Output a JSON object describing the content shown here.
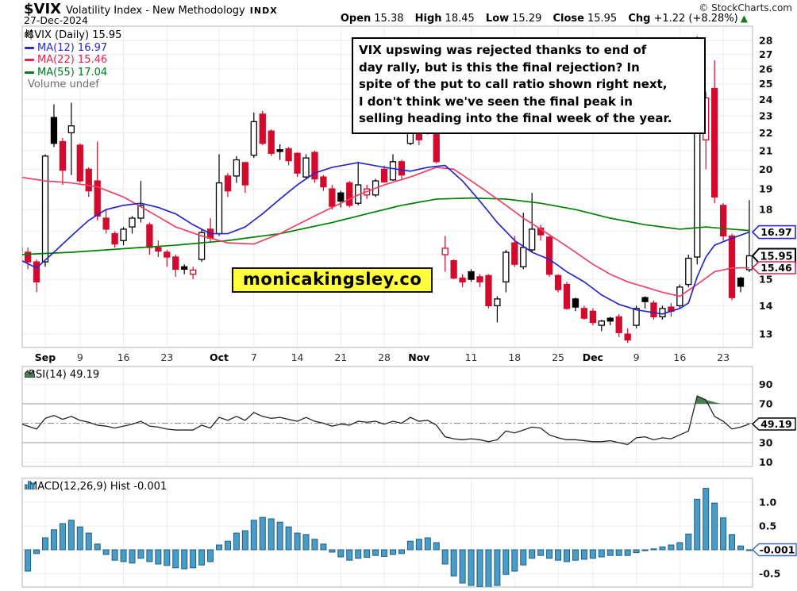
{
  "header": {
    "symbol": "$VIX",
    "name": "Volatility Index - New Methodology",
    "exchange": "INDX",
    "date": "27-Dec-2024",
    "credit": "© StockCharts.com",
    "quote": {
      "open_label": "Open",
      "open": "15.38",
      "high_label": "High",
      "high": "18.45",
      "low_label": "Low",
      "low": "15.29",
      "close_label": "Close",
      "close": "15.95",
      "chg_label": "Chg",
      "chg": "+1.22 (+8.28%)",
      "direction_arrow": "▲"
    }
  },
  "legend": {
    "series_label": "$VIX (Daily) 15.95",
    "ma12_label": "MA(12) 16.97",
    "ma22_label": "MA(22) 15.46",
    "ma55_label": "MA(55) 17.04",
    "volume_label": "Volume undef"
  },
  "annotation": {
    "lines": [
      "VIX upswing was rejected thanks to end of",
      "day rally, but is this the final rejection? In",
      "spite of the put to call ratio shown right next,",
      "I don't think we've seen the final peak in",
      "selling heading into the final week of the year."
    ]
  },
  "watermark": {
    "text": "monicakingsley.co"
  },
  "rsi_panel": {
    "label": "RSI(14) 49.19",
    "callout": "49.19"
  },
  "macd_panel": {
    "label": "MACD(12,26,9) Hist -0.001",
    "callout": "-0.001"
  },
  "price_callouts": {
    "ma12": "16.97",
    "last": "15.95",
    "ma22": "15.46"
  },
  "colors": {
    "candle_up": "#000000",
    "candle_down": "#d20a2e",
    "ma12": "#2828c8",
    "ma22": "#ef4066",
    "ma55": "#008000",
    "macd_bar_fill": "#4a9cc7",
    "macd_bar_stroke": "#1d5f86",
    "rsi_line": "#222222",
    "rsi_overbought_fill": "#4a7d57",
    "grid": "#ececec",
    "panel_border": "#b4b4b4",
    "watermark_bg": "#ffff3d"
  },
  "chart_data": {
    "type": "candlestick+indicators",
    "title": "$VIX Volatility Index - New Methodology (Daily)",
    "scale": "log",
    "price_ylim": [
      12.6,
      29.1
    ],
    "price_ticks": [
      13,
      14,
      15,
      16,
      17,
      18,
      19,
      20,
      21,
      22,
      23,
      24,
      25,
      26,
      27,
      28
    ],
    "x_ticks": [
      [
        3,
        "Sep",
        1
      ],
      [
        7,
        "9",
        0
      ],
      [
        12,
        "16",
        0
      ],
      [
        17,
        "23",
        0
      ],
      [
        23,
        "Oct",
        1
      ],
      [
        27,
        "7",
        0
      ],
      [
        32,
        "14",
        0
      ],
      [
        37,
        "21",
        0
      ],
      [
        42,
        "28",
        0
      ],
      [
        46,
        "Nov",
        1
      ],
      [
        52,
        "11",
        0
      ],
      [
        57,
        "18",
        0
      ],
      [
        62,
        "25",
        0
      ],
      [
        66,
        "Dec",
        1
      ],
      [
        71,
        "9",
        0
      ],
      [
        76,
        "16",
        0
      ],
      [
        81,
        "23",
        0
      ]
    ],
    "ohlc": [
      [
        "Aug 28",
        16.3,
        17.2,
        15.9,
        16.1
      ],
      [
        "Aug 29",
        16.1,
        16.3,
        15.4,
        15.7
      ],
      [
        "Aug 30",
        15.7,
        15.8,
        14.5,
        14.9
      ],
      [
        "Sep 3",
        15.7,
        20.8,
        15.5,
        20.7
      ],
      [
        "Sep 4",
        22.9,
        23.7,
        21.2,
        21.4
      ],
      [
        "Sep 5",
        21.5,
        21.7,
        19.2,
        19.95
      ],
      [
        "Sep 6",
        22.0,
        23.8,
        19.7,
        22.4
      ],
      [
        "Sep 9",
        21.3,
        21.4,
        19.3,
        19.4
      ],
      [
        "Sep 10",
        20.0,
        20.1,
        18.6,
        18.9
      ],
      [
        "Sep 11",
        19.4,
        21.5,
        17.5,
        17.7
      ],
      [
        "Sep 12",
        17.6,
        18.0,
        16.9,
        17.1
      ],
      [
        "Sep 13",
        16.9,
        17.0,
        16.3,
        16.45
      ],
      [
        "Sep 16",
        16.6,
        17.2,
        16.4,
        17.1
      ],
      [
        "Sep 17",
        17.2,
        17.7,
        16.9,
        17.6
      ],
      [
        "Sep 18",
        17.6,
        19.4,
        17.4,
        18.2
      ],
      [
        "Sep 19",
        17.3,
        17.4,
        16.0,
        16.3
      ],
      [
        "Sep 20",
        16.3,
        16.6,
        15.9,
        16.15
      ],
      [
        "Sep 23",
        16.1,
        16.2,
        15.5,
        15.9
      ],
      [
        "Sep 24",
        15.9,
        16.0,
        15.1,
        15.4
      ],
      [
        "Sep 25",
        15.5,
        15.6,
        15.2,
        15.4
      ],
      [
        "Sep 26",
        15.2,
        15.5,
        15.0,
        15.37
      ],
      [
        "Sep 27",
        15.8,
        17.1,
        15.7,
        16.95
      ],
      [
        "Sep 30",
        17.1,
        17.6,
        16.5,
        16.7
      ],
      [
        "Oct 1",
        16.9,
        20.8,
        16.8,
        19.3
      ],
      [
        "Oct 2",
        19.65,
        19.8,
        18.6,
        18.9
      ],
      [
        "Oct 3",
        19.65,
        20.7,
        19.3,
        20.5
      ],
      [
        "Oct 4",
        20.35,
        20.4,
        18.8,
        19.2
      ],
      [
        "Oct 7",
        20.75,
        23.2,
        20.6,
        22.65
      ],
      [
        "Oct 8",
        23.1,
        23.3,
        21.3,
        21.4
      ],
      [
        "Oct 9",
        22.1,
        22.2,
        20.7,
        20.85
      ],
      [
        "Oct 10",
        21.05,
        21.35,
        20.5,
        20.95
      ],
      [
        "Oct 11",
        21.1,
        21.2,
        20.2,
        20.45
      ],
      [
        "Oct 14",
        20.85,
        20.9,
        19.6,
        19.8
      ],
      [
        "Oct 15",
        19.6,
        20.8,
        19.5,
        20.6
      ],
      [
        "Oct 16",
        20.9,
        21.0,
        19.3,
        19.5
      ],
      [
        "Oct 17",
        19.6,
        19.7,
        18.9,
        19.1
      ],
      [
        "Oct 18",
        19.0,
        19.2,
        18.0,
        18.15
      ],
      [
        "Oct 21",
        18.8,
        18.9,
        18.1,
        18.4
      ],
      [
        "Oct 22",
        19.3,
        19.4,
        18.1,
        18.2
      ],
      [
        "Oct 23",
        18.3,
        20.4,
        18.2,
        19.2
      ],
      [
        "Oct 24",
        18.7,
        19.2,
        18.5,
        19.0
      ],
      [
        "Oct 25",
        18.7,
        19.5,
        18.6,
        19.4
      ],
      [
        "Oct 28",
        20.0,
        20.2,
        19.3,
        19.35
      ],
      [
        "Oct 29",
        19.45,
        20.8,
        19.4,
        20.4
      ],
      [
        "Oct 30",
        20.4,
        20.5,
        19.5,
        19.7
      ],
      [
        "Oct 31",
        21.4,
        23.4,
        21.3,
        23.1
      ],
      [
        "Nov 1",
        22.5,
        22.6,
        21.3,
        21.6
      ],
      [
        "Nov 4",
        22.4,
        22.5,
        21.9,
        22.0
      ],
      [
        "Nov 5",
        22.1,
        22.2,
        20.3,
        20.4
      ],
      [
        "Nov 6",
        16.0,
        16.8,
        15.3,
        16.27
      ],
      [
        "Nov 7",
        15.75,
        15.8,
        15.0,
        15.05
      ],
      [
        "Nov 8",
        15.05,
        15.2,
        14.7,
        14.9
      ],
      [
        "Nov 11",
        15.3,
        15.4,
        14.9,
        15.0
      ],
      [
        "Nov 12",
        15.1,
        15.2,
        14.7,
        14.9
      ],
      [
        "Nov 13",
        15.15,
        15.2,
        13.9,
        14.0
      ],
      [
        "Nov 14",
        14.0,
        14.35,
        13.4,
        14.25
      ],
      [
        "Nov 15",
        14.9,
        16.2,
        14.5,
        16.1
      ],
      [
        "Nov 18",
        16.5,
        16.8,
        15.5,
        15.6
      ],
      [
        "Nov 19",
        15.5,
        17.85,
        15.4,
        16.3
      ],
      [
        "Nov 20",
        16.2,
        18.8,
        16.1,
        17.1
      ],
      [
        "Nov 21",
        17.15,
        17.3,
        16.6,
        16.85
      ],
      [
        "Nov 22",
        16.75,
        16.8,
        15.1,
        15.2
      ],
      [
        "Nov 25",
        15.15,
        15.2,
        14.5,
        14.6
      ],
      [
        "Nov 26",
        14.8,
        14.9,
        13.85,
        13.9
      ],
      [
        "Nov 27",
        14.25,
        14.3,
        13.8,
        13.95
      ],
      [
        "Nov 29",
        13.9,
        14.0,
        13.5,
        13.55
      ],
      [
        "Dec 2",
        13.8,
        13.9,
        13.3,
        13.4
      ],
      [
        "Dec 3",
        13.3,
        13.5,
        13.1,
        13.45
      ],
      [
        "Dec 4",
        13.55,
        13.6,
        13.3,
        13.45
      ],
      [
        "Dec 5",
        13.6,
        13.7,
        12.9,
        13.05
      ],
      [
        "Dec 6",
        13.0,
        13.2,
        12.7,
        12.8
      ],
      [
        "Dec 9",
        13.3,
        14.0,
        13.2,
        13.9
      ],
      [
        "Dec 10",
        14.3,
        14.35,
        13.9,
        14.15
      ],
      [
        "Dec 11",
        14.1,
        14.2,
        13.5,
        13.6
      ],
      [
        "Dec 12",
        13.6,
        14.0,
        13.5,
        13.9
      ],
      [
        "Dec 13",
        13.95,
        14.1,
        13.6,
        13.8
      ],
      [
        "Dec 16",
        14.0,
        14.8,
        13.9,
        14.7
      ],
      [
        "Dec 17",
        14.8,
        16.0,
        14.7,
        15.85
      ],
      [
        "Dec 18",
        15.9,
        28.3,
        15.6,
        27.6
      ],
      [
        "Dec 19",
        21.6,
        24.5,
        20.0,
        24.1
      ],
      [
        "Dec 20",
        24.7,
        26.6,
        18.3,
        18.6
      ],
      [
        "Dec 23",
        18.2,
        18.3,
        16.6,
        16.8
      ],
      [
        "Dec 24",
        16.8,
        16.9,
        14.2,
        14.3
      ],
      [
        "Dec 26",
        15.05,
        15.1,
        14.5,
        14.73
      ],
      [
        "Dec 27",
        15.38,
        18.45,
        15.29,
        15.95
      ]
    ],
    "ma12_points": [
      [
        0,
        15.8
      ],
      [
        2,
        15.45
      ],
      [
        4,
        16.1
      ],
      [
        6,
        16.8
      ],
      [
        8,
        17.5
      ],
      [
        10,
        18.0
      ],
      [
        12,
        18.2
      ],
      [
        14,
        18.3
      ],
      [
        16,
        18.1
      ],
      [
        18,
        17.8
      ],
      [
        20,
        17.3
      ],
      [
        22,
        16.9
      ],
      [
        24,
        16.9
      ],
      [
        26,
        17.2
      ],
      [
        28,
        17.8
      ],
      [
        30,
        18.5
      ],
      [
        32,
        19.2
      ],
      [
        34,
        19.8
      ],
      [
        36,
        20.1
      ],
      [
        39,
        20.35
      ],
      [
        42,
        20.1
      ],
      [
        45,
        19.9
      ],
      [
        47,
        20.1
      ],
      [
        49,
        20.2
      ],
      [
        51,
        19.4
      ],
      [
        53,
        18.4
      ],
      [
        55,
        17.4
      ],
      [
        57,
        16.6
      ],
      [
        59,
        16.1
      ],
      [
        61,
        15.8
      ],
      [
        63,
        15.3
      ],
      [
        65,
        14.9
      ],
      [
        67,
        14.4
      ],
      [
        69,
        14.05
      ],
      [
        71,
        13.85
      ],
      [
        74,
        13.7
      ],
      [
        76,
        13.9
      ],
      [
        77,
        14.1
      ],
      [
        78,
        15.1
      ],
      [
        79,
        15.9
      ],
      [
        80,
        16.4
      ],
      [
        82,
        16.7
      ],
      [
        84,
        16.97
      ]
    ],
    "ma22_points": [
      [
        0,
        19.6
      ],
      [
        3,
        19.4
      ],
      [
        6,
        19.3
      ],
      [
        9,
        19.1
      ],
      [
        12,
        18.6
      ],
      [
        15,
        17.9
      ],
      [
        18,
        17.2
      ],
      [
        21,
        16.8
      ],
      [
        24,
        16.5
      ],
      [
        27,
        16.45
      ],
      [
        30,
        16.9
      ],
      [
        33,
        17.5
      ],
      [
        36,
        18.1
      ],
      [
        39,
        18.7
      ],
      [
        42,
        19.2
      ],
      [
        45,
        19.6
      ],
      [
        48,
        20.1
      ],
      [
        50,
        20.0
      ],
      [
        52,
        19.4
      ],
      [
        54,
        18.8
      ],
      [
        56,
        18.2
      ],
      [
        58,
        17.6
      ],
      [
        60,
        17.1
      ],
      [
        62,
        16.6
      ],
      [
        64,
        16.1
      ],
      [
        66,
        15.6
      ],
      [
        68,
        15.2
      ],
      [
        70,
        14.9
      ],
      [
        72,
        14.7
      ],
      [
        74,
        14.5
      ],
      [
        76,
        14.35
      ],
      [
        78,
        14.8
      ],
      [
        80,
        15.3
      ],
      [
        82,
        15.45
      ],
      [
        84,
        15.46
      ]
    ],
    "ma55_points": [
      [
        0,
        16.0
      ],
      [
        6,
        16.1
      ],
      [
        12,
        16.25
      ],
      [
        18,
        16.4
      ],
      [
        24,
        16.6
      ],
      [
        30,
        16.9
      ],
      [
        36,
        17.4
      ],
      [
        40,
        17.8
      ],
      [
        44,
        18.2
      ],
      [
        48,
        18.5
      ],
      [
        52,
        18.55
      ],
      [
        56,
        18.5
      ],
      [
        60,
        18.3
      ],
      [
        64,
        18.0
      ],
      [
        68,
        17.6
      ],
      [
        72,
        17.3
      ],
      [
        76,
        17.1
      ],
      [
        79,
        17.2
      ],
      [
        82,
        17.1
      ],
      [
        84,
        17.04
      ]
    ],
    "rsi14": [
      50,
      47,
      44,
      55,
      58,
      54,
      57,
      53,
      51,
      48,
      47,
      45,
      47,
      49,
      52,
      47,
      46,
      44,
      43,
      43,
      43,
      48,
      45,
      56,
      53,
      57,
      53,
      61,
      57,
      55,
      56,
      54,
      52,
      56,
      52,
      50,
      47,
      49,
      48,
      52,
      51,
      52,
      49,
      52,
      50,
      56,
      52,
      53,
      48,
      36,
      34,
      33,
      34,
      33,
      31,
      33,
      42,
      40,
      43,
      46,
      45,
      38,
      35,
      33,
      33,
      32,
      31,
      31,
      32,
      30,
      28,
      35,
      36,
      33,
      35,
      34,
      38,
      42,
      78,
      74,
      57,
      52,
      44,
      46,
      49.19
    ],
    "rsi_lines": {
      "overbought": 70,
      "oversold": 30,
      "mid": 50,
      "axis_labels": [
        90,
        70,
        30,
        10
      ]
    },
    "macd_hist": [
      -0.42,
      -0.45,
      -0.08,
      0.25,
      0.42,
      0.55,
      0.62,
      0.48,
      0.35,
      0.12,
      -0.1,
      -0.22,
      -0.25,
      -0.28,
      -0.18,
      -0.25,
      -0.3,
      -0.33,
      -0.38,
      -0.4,
      -0.38,
      -0.32,
      -0.25,
      0.1,
      0.18,
      0.35,
      0.4,
      0.62,
      0.68,
      0.65,
      0.58,
      0.48,
      0.35,
      0.32,
      0.22,
      0.12,
      -0.05,
      -0.15,
      -0.22,
      -0.18,
      -0.16,
      -0.12,
      -0.14,
      -0.1,
      -0.08,
      0.18,
      0.22,
      0.25,
      0.15,
      -0.3,
      -0.55,
      -0.7,
      -0.75,
      -0.78,
      -0.8,
      -0.75,
      -0.52,
      -0.45,
      -0.32,
      -0.18,
      -0.12,
      -0.18,
      -0.22,
      -0.25,
      -0.22,
      -0.2,
      -0.18,
      -0.15,
      -0.12,
      -0.12,
      -0.12,
      -0.06,
      -0.02,
      0.02,
      0.06,
      0.1,
      0.15,
      0.33,
      1.06,
      1.29,
      0.98,
      0.67,
      0.32,
      0.08,
      -0.001
    ],
    "macd_ticks": [
      "1.0",
      "0.5",
      "-0.5"
    ],
    "last_values": {
      "close": 15.95,
      "ma12": 16.97,
      "ma22": 15.46,
      "ma55": 17.04,
      "rsi": 49.19,
      "macd_hist": -0.001
    }
  }
}
